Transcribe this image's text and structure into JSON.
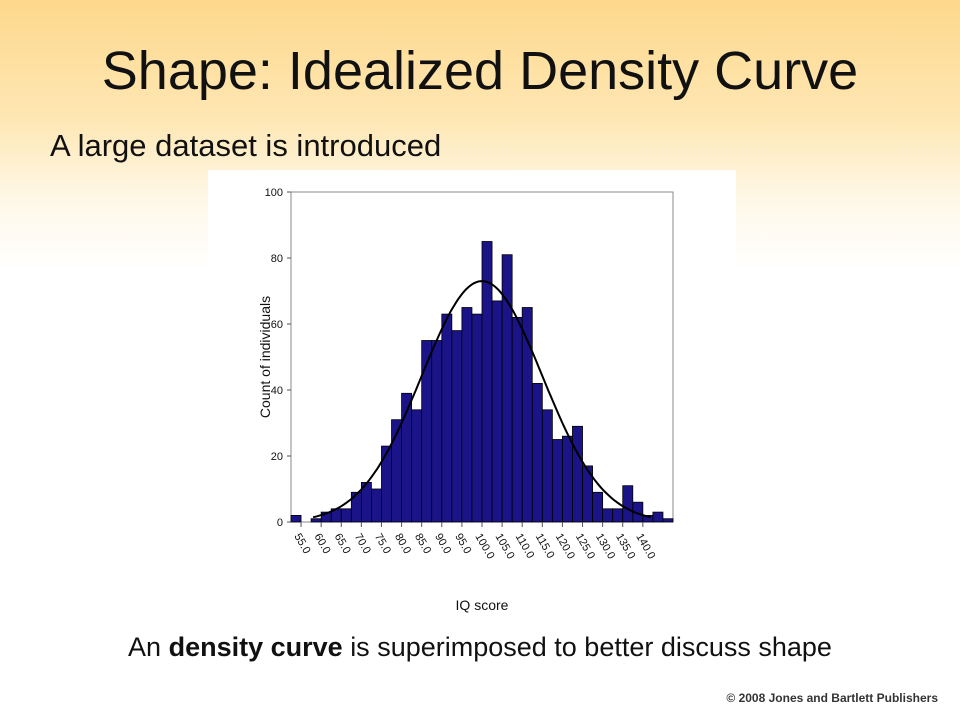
{
  "slide": {
    "title": "Shape: Idealized Density Curve",
    "subtitle": "A large dataset is introduced",
    "caption_prefix": "An",
    "caption_bold": "density curve",
    "caption_suffix": "is superimposed to better discuss shape",
    "copyright": "© 2008 Jones and Bartlett Publishers"
  },
  "chart_data": {
    "type": "bar",
    "xlabel": "IQ score",
    "ylabel": "Count of individuals",
    "ylim": [
      0,
      100
    ],
    "yticks": [
      0,
      20,
      40,
      60,
      80,
      100
    ],
    "xlim": [
      52.5,
      147.5
    ],
    "xticks": [
      "55.0",
      "60.0",
      "65.0",
      "70.0",
      "75.0",
      "80.0",
      "85.0",
      "90.0",
      "95.0",
      "100.0",
      "105.0",
      "110.0",
      "115.0",
      "120.0",
      "125.0",
      "130.0",
      "135.0",
      "140.0"
    ],
    "bin_width": 2.5,
    "bins": [
      {
        "x": 52.5,
        "count": 2
      },
      {
        "x": 55.0,
        "count": 0
      },
      {
        "x": 57.5,
        "count": 1
      },
      {
        "x": 60.0,
        "count": 3
      },
      {
        "x": 62.5,
        "count": 4
      },
      {
        "x": 65.0,
        "count": 4
      },
      {
        "x": 67.5,
        "count": 9
      },
      {
        "x": 70.0,
        "count": 12
      },
      {
        "x": 72.5,
        "count": 10
      },
      {
        "x": 75.0,
        "count": 23
      },
      {
        "x": 77.5,
        "count": 31
      },
      {
        "x": 80.0,
        "count": 39
      },
      {
        "x": 82.5,
        "count": 34
      },
      {
        "x": 85.0,
        "count": 55
      },
      {
        "x": 87.5,
        "count": 55
      },
      {
        "x": 90.0,
        "count": 63
      },
      {
        "x": 92.5,
        "count": 58
      },
      {
        "x": 95.0,
        "count": 65
      },
      {
        "x": 97.5,
        "count": 63
      },
      {
        "x": 100.0,
        "count": 85
      },
      {
        "x": 102.5,
        "count": 67
      },
      {
        "x": 105.0,
        "count": 81
      },
      {
        "x": 107.5,
        "count": 62
      },
      {
        "x": 110.0,
        "count": 65
      },
      {
        "x": 112.5,
        "count": 42
      },
      {
        "x": 115.0,
        "count": 34
      },
      {
        "x": 117.5,
        "count": 25
      },
      {
        "x": 120.0,
        "count": 26
      },
      {
        "x": 122.5,
        "count": 29
      },
      {
        "x": 125.0,
        "count": 17
      },
      {
        "x": 127.5,
        "count": 9
      },
      {
        "x": 130.0,
        "count": 4
      },
      {
        "x": 132.5,
        "count": 4
      },
      {
        "x": 135.0,
        "count": 11
      },
      {
        "x": 137.5,
        "count": 6
      },
      {
        "x": 140.0,
        "count": 2
      },
      {
        "x": 142.5,
        "count": 3
      },
      {
        "x": 145.0,
        "count": 1
      }
    ],
    "density_curve": {
      "mean": 100,
      "sd": 15,
      "peak": 73,
      "color": "#000000"
    },
    "bar_color": "#1a1488",
    "bar_edge_color": "#000000"
  }
}
